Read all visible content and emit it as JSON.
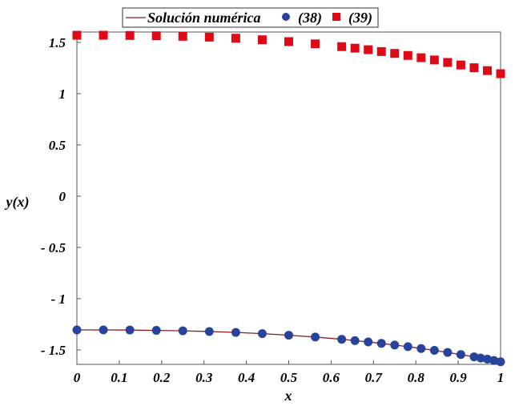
{
  "chart_data": {
    "type": "scatter",
    "title": "",
    "xlabel": "x",
    "ylabel": "y(x)",
    "xlim": [
      0,
      1
    ],
    "ylim": [
      -1.64,
      1.6
    ],
    "grid": false,
    "legend_position": "top-center",
    "x_ticks": [
      "0",
      "0.1",
      "0.2",
      "0.3",
      "0.4",
      "0.5",
      "0.6",
      "0.7",
      "0.8",
      "0.9",
      "1"
    ],
    "x_tick_values": [
      0,
      0.1,
      0.2,
      0.3,
      0.4,
      0.5,
      0.6,
      0.7,
      0.8,
      0.9,
      1
    ],
    "y_ticks": [
      "1.5",
      "1",
      "0.5",
      "0",
      "- 0.5",
      "- 1",
      "- 1.5"
    ],
    "y_tick_values": [
      1.5,
      1,
      0.5,
      0,
      -0.5,
      -1,
      -1.5
    ],
    "series": [
      {
        "name": "Solución numérica",
        "kind": "line",
        "color": "#8b1a1a",
        "x": [
          0,
          0.0625,
          0.125,
          0.1875,
          0.25,
          0.3125,
          0.375,
          0.4375,
          0.5,
          0.5625,
          0.625,
          0.65625,
          0.6875,
          0.71875,
          0.75,
          0.78125,
          0.8125,
          0.84375,
          0.875,
          0.90625,
          0.9375,
          0.953125,
          0.96875,
          0.984375,
          1
        ],
        "y": [
          -1.305,
          -1.305,
          -1.306,
          -1.309,
          -1.313,
          -1.32,
          -1.329,
          -1.341,
          -1.356,
          -1.374,
          -1.396,
          -1.409,
          -1.422,
          -1.436,
          -1.452,
          -1.468,
          -1.486,
          -1.504,
          -1.524,
          -1.545,
          -1.567,
          -1.579,
          -1.59,
          -1.603,
          -1.615
        ]
      },
      {
        "name": "(38)",
        "kind": "circle",
        "color": "#27449c",
        "x": [
          0,
          0.0625,
          0.125,
          0.1875,
          0.25,
          0.3125,
          0.375,
          0.4375,
          0.5,
          0.5625,
          0.625,
          0.65625,
          0.6875,
          0.71875,
          0.75,
          0.78125,
          0.8125,
          0.84375,
          0.875,
          0.90625,
          0.9375,
          0.953125,
          0.96875,
          0.984375,
          1
        ],
        "y": [
          -1.305,
          -1.305,
          -1.306,
          -1.309,
          -1.313,
          -1.32,
          -1.329,
          -1.341,
          -1.356,
          -1.374,
          -1.396,
          -1.409,
          -1.422,
          -1.436,
          -1.452,
          -1.468,
          -1.486,
          -1.504,
          -1.524,
          -1.545,
          -1.567,
          -1.579,
          -1.59,
          -1.603,
          -1.615
        ]
      },
      {
        "name": "(39)",
        "kind": "square",
        "color": "#e00a16",
        "x": [
          0,
          0.0625,
          0.125,
          0.1875,
          0.25,
          0.3125,
          0.375,
          0.4375,
          0.5,
          0.5625,
          0.625,
          0.65625,
          0.6875,
          0.71875,
          0.75,
          0.78125,
          0.8125,
          0.84375,
          0.875,
          0.90625,
          0.9375,
          0.96875,
          1
        ],
        "y": [
          1.57,
          1.57,
          1.568,
          1.565,
          1.56,
          1.552,
          1.541,
          1.526,
          1.508,
          1.486,
          1.459,
          1.444,
          1.429,
          1.411,
          1.393,
          1.373,
          1.351,
          1.329,
          1.305,
          1.28,
          1.253,
          1.225,
          1.195
        ]
      }
    ]
  }
}
